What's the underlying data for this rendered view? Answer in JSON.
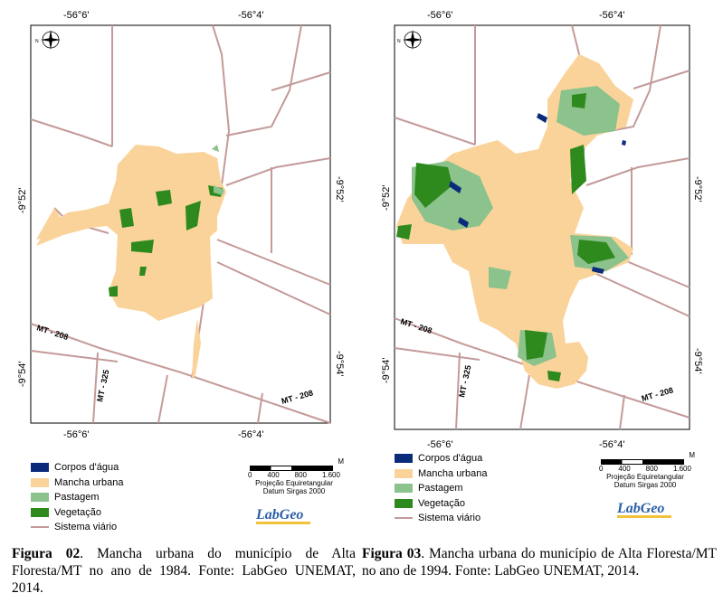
{
  "maps": [
    {
      "coords": {
        "top_left": "-56°6'",
        "top_right": "-56°4'",
        "bottom_left": "-56°6'",
        "bottom_right": "-56°4'",
        "left_upper": "-9°52'",
        "left_lower": "-9°54'",
        "right_upper": "-9°52'",
        "right_lower": "-9°54'"
      },
      "roads": {
        "mt208_a": "MT - 208",
        "mt208_b": "MT - 208",
        "mt325": "MT - 325"
      },
      "caption": {
        "label": "Figura 02",
        "text": ". Mancha urbana do município de Alta Floresta/MT no ano de 1984. Fonte: LabGeo UNEMAT, 2014."
      }
    },
    {
      "coords": {
        "top_left": "-56°6'",
        "top_right": "-56°4'",
        "bottom_left": "-56°6'",
        "bottom_right": "-56°4'",
        "left_upper": "-9°52'",
        "left_lower": "-9°54'",
        "right_upper": "-9°52'",
        "right_lower": "-9°54'"
      },
      "roads": {
        "mt208_a": "MT - 208",
        "mt208_b": "MT - 208",
        "mt325": "MT - 325"
      },
      "caption": {
        "label": "Figura 03",
        "text": ". Mancha urbana do município de Alta Floresta/MT no ano de 1994. Fonte: LabGeo UNEMAT, 2014."
      }
    }
  ],
  "legend": {
    "items": [
      {
        "label": "Corpos d'água",
        "color": "#0a2a7a"
      },
      {
        "label": "Mancha urbana",
        "color": "#fad39a"
      },
      {
        "label": "Pastagem",
        "color": "#8cc28c"
      },
      {
        "label": "Vegetação",
        "color": "#2f8a1e"
      },
      {
        "label": "Sistema viário",
        "color": "#c49a9a"
      }
    ]
  },
  "scale": {
    "unit": "M",
    "ticks": [
      "0",
      "400",
      "800",
      "1.600"
    ],
    "projection": "Projeção Equiretangular",
    "datum": "Datum Sirgas 2000"
  },
  "logo": {
    "text": "LabGeo"
  },
  "compass": {
    "n": "N"
  },
  "colors": {
    "urban": "#fad39a",
    "pasture": "#8cc28c",
    "vegetation": "#2f8a1e",
    "water": "#0a2a7a",
    "road": "#c49a9a"
  }
}
